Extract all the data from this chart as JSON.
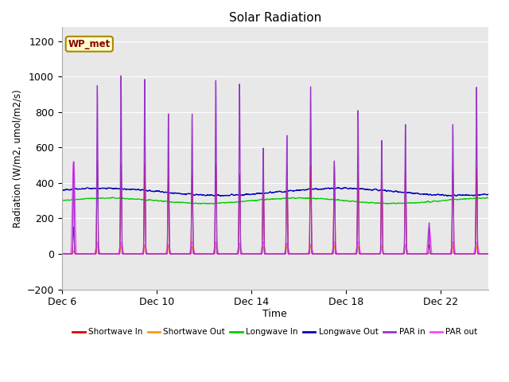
{
  "title": "Solar Radiation",
  "ylabel": "Radiation (W/m2, umol/m2/s)",
  "xlabel": "Time",
  "ylim": [
    -200,
    1280
  ],
  "yticks": [
    -200,
    0,
    200,
    400,
    600,
    800,
    1000,
    1200
  ],
  "plot_bg": "#e8e8e8",
  "annotation_text": "WP_met",
  "annotation_bg": "#ffffcc",
  "annotation_border": "#aa8800",
  "series_colors": {
    "shortwave_in": "#dd0000",
    "shortwave_out": "#ff9900",
    "longwave_in": "#00cc00",
    "longwave_out": "#0000bb",
    "par_in": "#9933cc",
    "par_out": "#ff44ff"
  },
  "n_days": 18,
  "xtick_labels": [
    "Dec 6",
    "Dec 10",
    "Dec 14",
    "Dec 18",
    "Dec 22"
  ],
  "xtick_positions": [
    0,
    4,
    8,
    12,
    16
  ],
  "legend_entries": [
    "Shortwave In",
    "Shortwave Out",
    "Longwave In",
    "Longwave Out",
    "PAR in",
    "PAR out"
  ],
  "legend_colors": [
    "#dd0000",
    "#ff9900",
    "#00cc00",
    "#0000bb",
    "#9933cc",
    "#ff44ff"
  ],
  "par_in_peaks": [
    520,
    950,
    1005,
    985,
    790,
    790,
    980,
    960,
    598,
    670,
    945,
    525,
    810,
    640,
    730,
    175,
    730,
    940
  ],
  "sw_in_peaks": [
    150,
    530,
    510,
    510,
    450,
    450,
    510,
    450,
    450,
    500,
    500,
    500,
    450,
    500,
    490,
    50,
    490,
    490
  ],
  "par_out_peaks": [
    520,
    65,
    65,
    50,
    50,
    65,
    65,
    60,
    65,
    60,
    50,
    65,
    65,
    25,
    50,
    150,
    65,
    65
  ]
}
